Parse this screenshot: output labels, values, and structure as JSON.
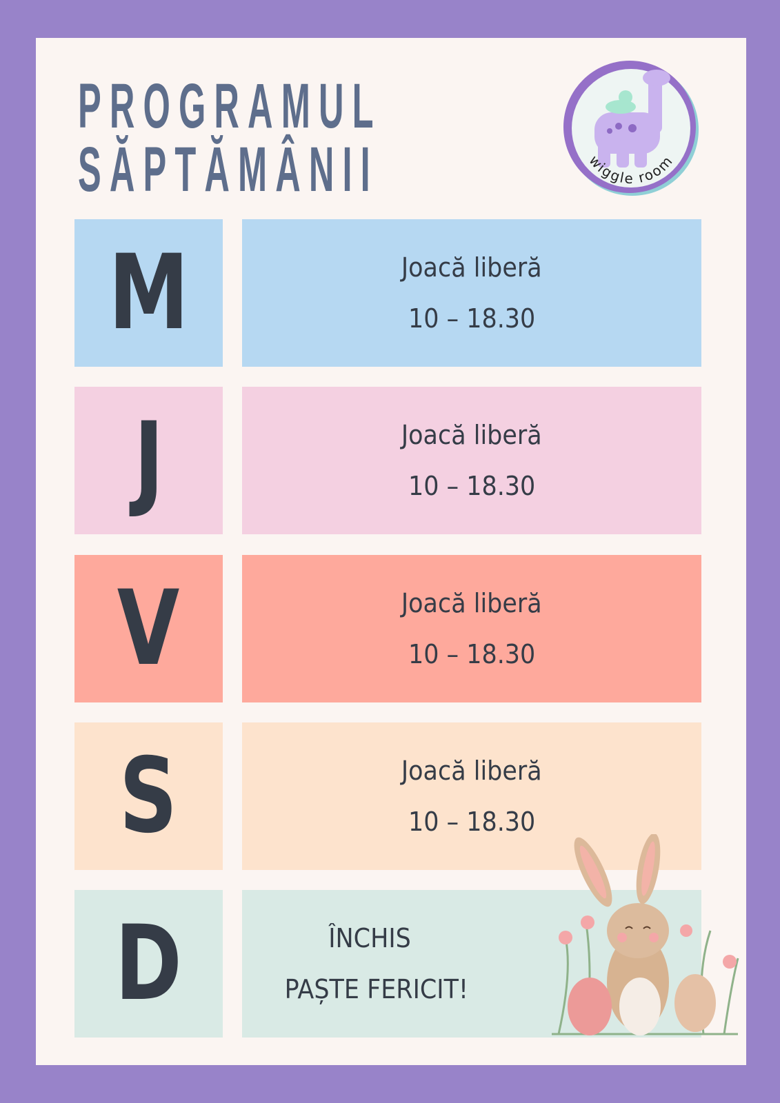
{
  "title": {
    "line1": "PROGRAMUL",
    "line2": "SĂPTĂMÂNII"
  },
  "logo": {
    "text": "wiggle room"
  },
  "colors": {
    "background": "#9883c9",
    "panel": "#fbf5f2",
    "title": "#5e6e8c",
    "text": "#353c47"
  },
  "schedule": [
    {
      "day": "M",
      "line1": "Joacă liberă",
      "line2": "10 – 18.30",
      "color": "#b6d8f2"
    },
    {
      "day": "J",
      "line1": "Joacă liberă",
      "line2": "10 – 18.30",
      "color": "#f4d0e1"
    },
    {
      "day": "V",
      "line1": "Joacă liberă",
      "line2": "10 – 18.30",
      "color": "#fea99c"
    },
    {
      "day": "S",
      "line1": "Joacă liberă",
      "line2": "10 – 18.30",
      "color": "#fde3cd"
    },
    {
      "day": "D",
      "line1": "ÎNCHIS",
      "line2": "PAȘTE FERICIT!",
      "color": "#d9eae5"
    }
  ],
  "decoration": {
    "icon": "easter-bunny-illustration"
  }
}
